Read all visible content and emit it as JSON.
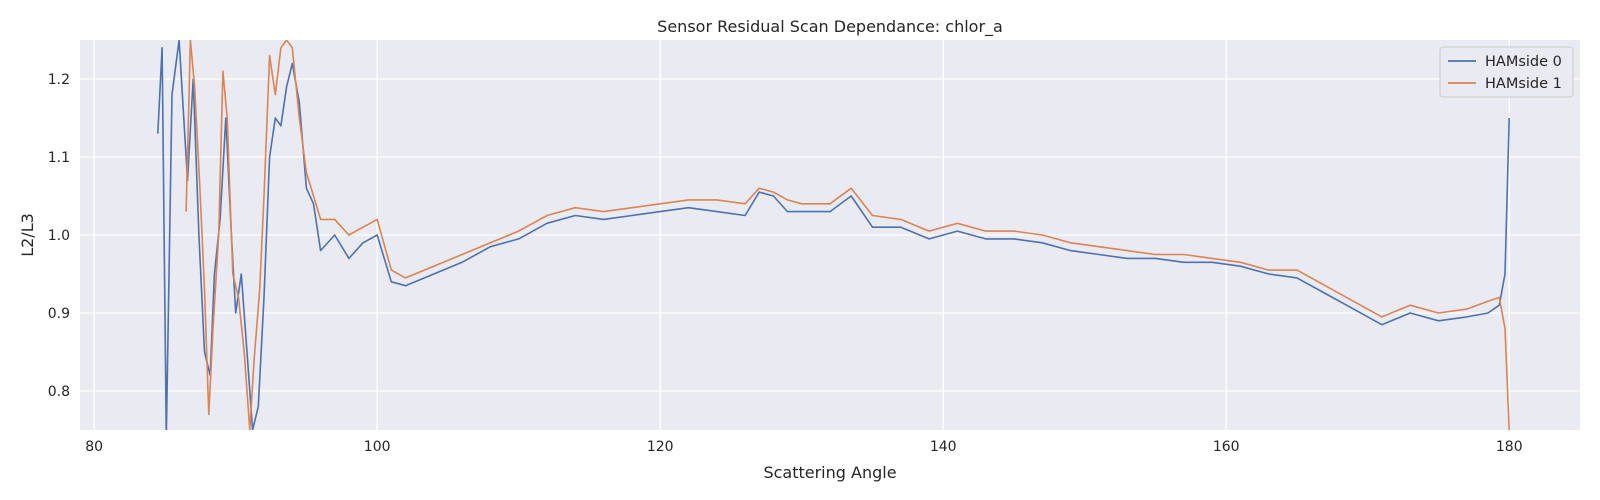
{
  "chart_data": {
    "type": "line",
    "title": "Sensor Residual Scan Dependance: chlor_a",
    "xlabel": "Scattering Angle",
    "ylabel": "L2/L3",
    "xlim": [
      79,
      185
    ],
    "ylim": [
      0.75,
      1.25
    ],
    "xticks": [
      80,
      100,
      120,
      140,
      160,
      180
    ],
    "yticks": [
      0.8,
      0.9,
      1.0,
      1.1,
      1.2
    ],
    "xtick_labels": [
      "80",
      "100",
      "120",
      "140",
      "160",
      "180"
    ],
    "ytick_labels": [
      "0.8",
      "0.9",
      "1.0",
      "1.1",
      "1.2"
    ],
    "grid": true,
    "legend_position": "top-right",
    "series": [
      {
        "name": "HAMside 0",
        "color": "#4c72b0",
        "x": [
          84.5,
          84.8,
          85.1,
          85.5,
          86.0,
          86.6,
          87.0,
          87.4,
          87.8,
          88.2,
          88.5,
          88.9,
          89.3,
          89.7,
          90.0,
          90.4,
          90.8,
          91.2,
          91.6,
          92.0,
          92.4,
          92.8,
          93.2,
          93.6,
          94.0,
          94.5,
          95.0,
          95.5,
          96.0,
          97.0,
          98.0,
          99.0,
          100.0,
          101.0,
          102.0,
          104.0,
          106.0,
          108.0,
          110.0,
          112.0,
          114.0,
          116.0,
          118.0,
          120.0,
          122.0,
          124.0,
          126.0,
          127.0,
          128.0,
          129.0,
          130.0,
          132.0,
          133.5,
          135.0,
          137.0,
          139.0,
          141.0,
          143.0,
          145.0,
          147.0,
          149.0,
          151.0,
          153.0,
          155.0,
          157.0,
          159.0,
          161.0,
          163.0,
          165.0,
          167.0,
          169.0,
          171.0,
          173.0,
          175.0,
          177.0,
          178.5,
          179.3,
          179.7,
          180.0
        ],
        "y": [
          1.13,
          1.24,
          0.74,
          1.18,
          1.25,
          1.07,
          1.2,
          1.0,
          0.85,
          0.82,
          0.95,
          1.02,
          1.15,
          1.0,
          0.9,
          0.95,
          0.85,
          0.75,
          0.78,
          0.92,
          1.1,
          1.15,
          1.14,
          1.19,
          1.22,
          1.17,
          1.06,
          1.04,
          0.98,
          1.0,
          0.97,
          0.99,
          1.0,
          0.94,
          0.935,
          0.95,
          0.965,
          0.985,
          0.995,
          1.015,
          1.025,
          1.02,
          1.025,
          1.03,
          1.035,
          1.03,
          1.025,
          1.055,
          1.05,
          1.03,
          1.03,
          1.03,
          1.05,
          1.01,
          1.01,
          0.995,
          1.005,
          0.995,
          0.995,
          0.99,
          0.98,
          0.975,
          0.97,
          0.97,
          0.965,
          0.965,
          0.96,
          0.95,
          0.945,
          0.925,
          0.905,
          0.885,
          0.9,
          0.89,
          0.895,
          0.9,
          0.91,
          0.95,
          1.15
        ]
      },
      {
        "name": "HAMside 1",
        "color": "#dd8452",
        "x": [
          86.5,
          86.8,
          87.1,
          87.5,
          87.8,
          88.1,
          88.4,
          88.8,
          89.1,
          89.4,
          89.8,
          90.2,
          90.6,
          91.0,
          91.3,
          91.7,
          92.0,
          92.4,
          92.8,
          93.2,
          93.6,
          94.0,
          94.5,
          95.0,
          95.5,
          96.0,
          97.0,
          98.0,
          99.0,
          100.0,
          101.0,
          102.0,
          104.0,
          106.0,
          108.0,
          110.0,
          112.0,
          114.0,
          116.0,
          118.0,
          120.0,
          122.0,
          124.0,
          126.0,
          127.0,
          128.0,
          129.0,
          130.0,
          132.0,
          133.5,
          135.0,
          137.0,
          139.0,
          141.0,
          143.0,
          145.0,
          147.0,
          149.0,
          151.0,
          153.0,
          155.0,
          157.0,
          159.0,
          161.0,
          163.0,
          165.0,
          167.0,
          169.0,
          171.0,
          173.0,
          175.0,
          177.0,
          178.5,
          179.3,
          179.7,
          180.0
        ],
        "y": [
          1.03,
          1.25,
          1.19,
          1.05,
          0.93,
          0.77,
          0.88,
          1.0,
          1.21,
          1.15,
          0.95,
          0.92,
          0.85,
          0.75,
          0.84,
          0.93,
          1.05,
          1.23,
          1.18,
          1.24,
          1.25,
          1.24,
          1.15,
          1.08,
          1.05,
          1.02,
          1.02,
          1.0,
          1.01,
          1.02,
          0.955,
          0.945,
          0.96,
          0.975,
          0.99,
          1.005,
          1.025,
          1.035,
          1.03,
          1.035,
          1.04,
          1.045,
          1.045,
          1.04,
          1.06,
          1.055,
          1.045,
          1.04,
          1.04,
          1.06,
          1.025,
          1.02,
          1.005,
          1.015,
          1.005,
          1.005,
          1.0,
          0.99,
          0.985,
          0.98,
          0.975,
          0.975,
          0.97,
          0.965,
          0.955,
          0.955,
          0.935,
          0.915,
          0.895,
          0.91,
          0.9,
          0.905,
          0.915,
          0.92,
          0.88,
          0.75
        ]
      }
    ]
  }
}
